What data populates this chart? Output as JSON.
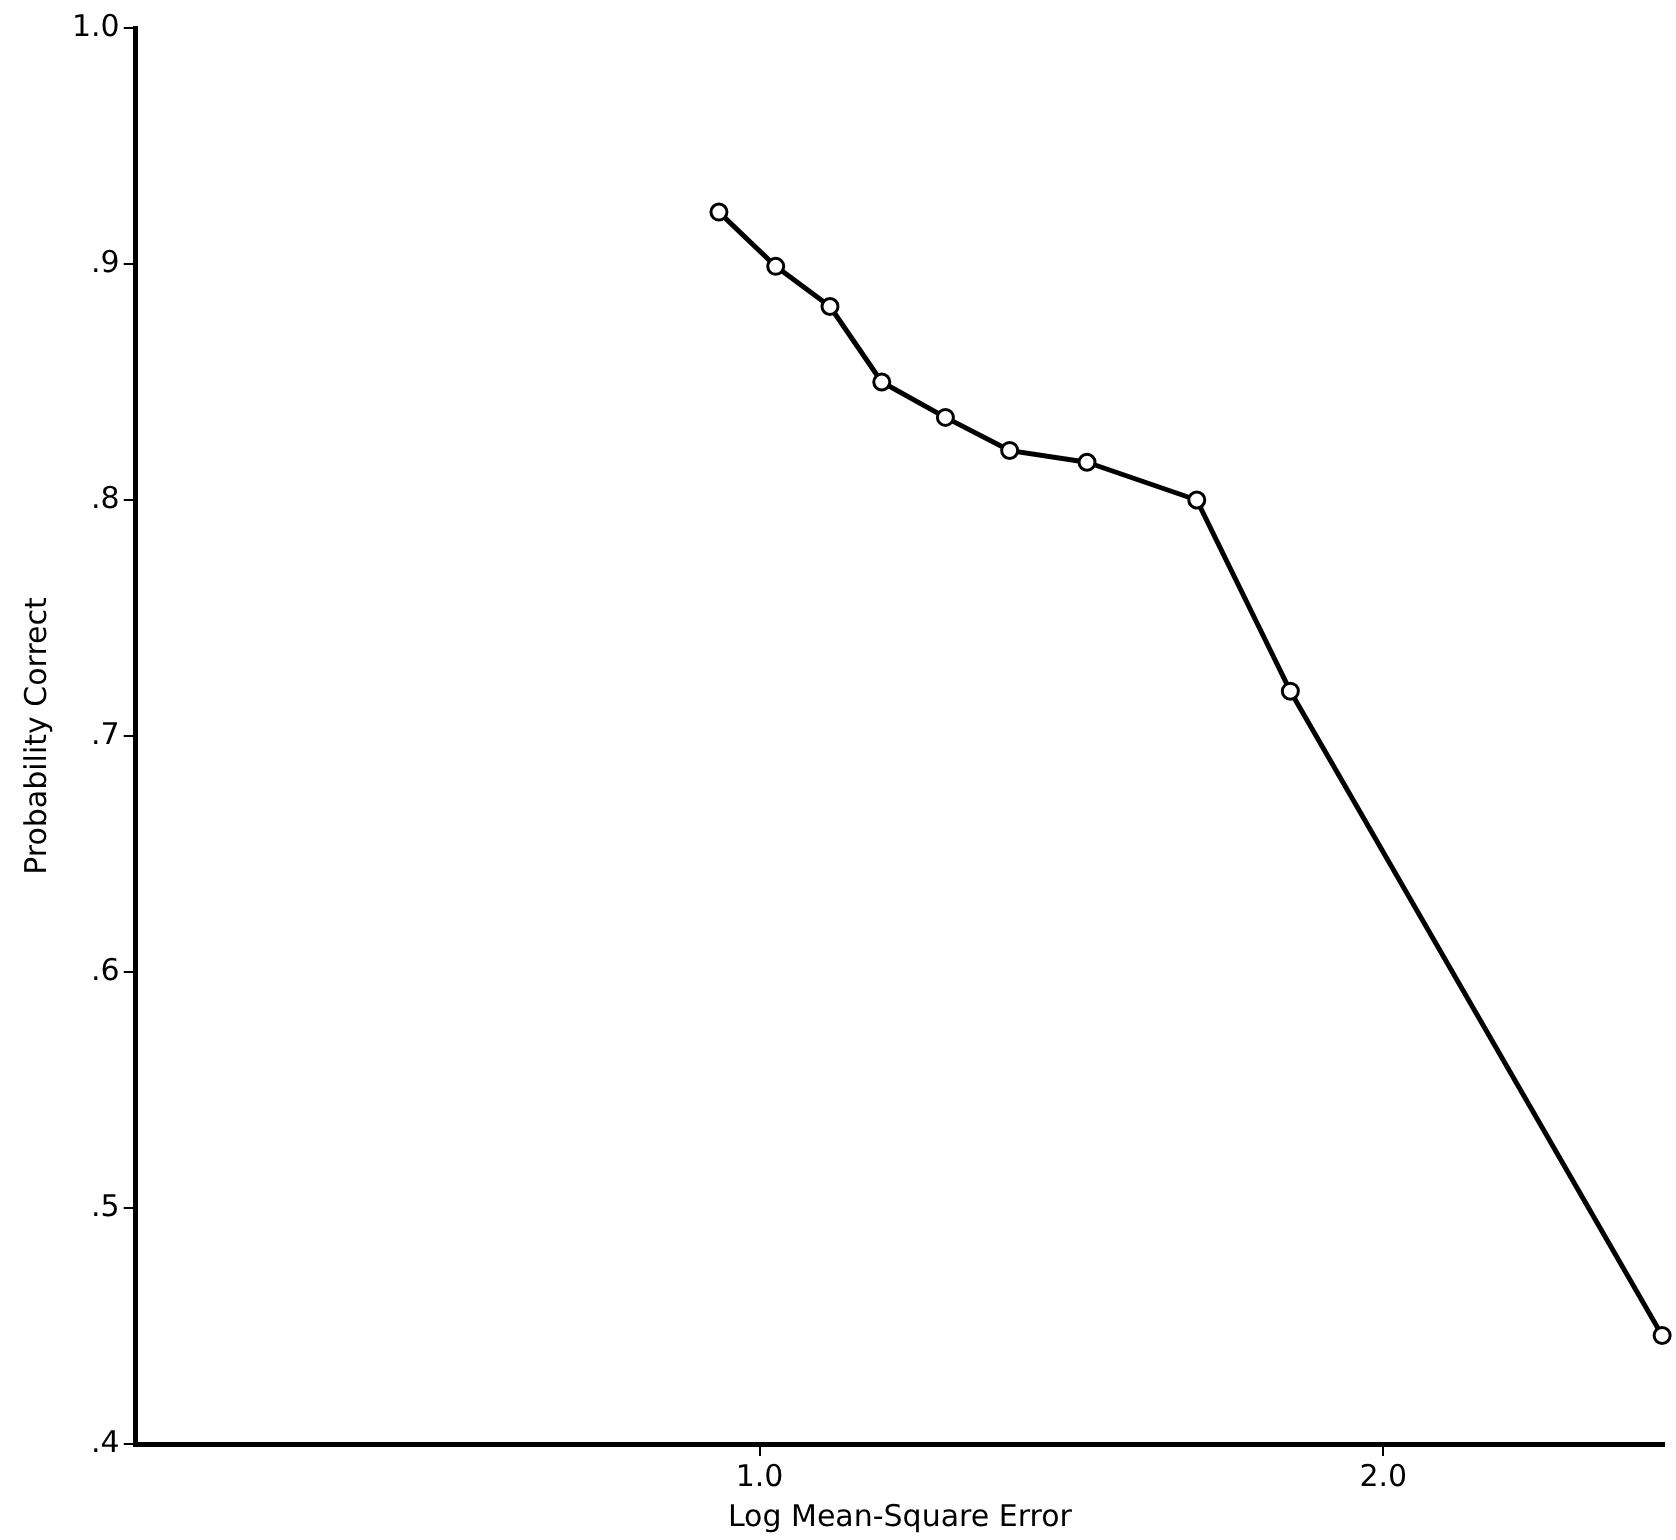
{
  "chart_data": {
    "type": "line",
    "xlabel": "Log Mean-Square Error",
    "ylabel": "Probability Correct",
    "x": [
      0.935,
      1.026,
      1.113,
      1.196,
      1.298,
      1.401,
      1.525,
      1.701,
      1.851,
      2.447
    ],
    "series": [
      {
        "color": "#000000",
        "values": [
          0.922,
          0.899,
          0.882,
          0.85,
          0.835,
          0.821,
          0.816,
          0.8,
          0.719,
          0.446
        ]
      }
    ],
    "xlim": [
      0,
      2.45
    ],
    "ylim": [
      0.4,
      1.0
    ],
    "xticks": [
      {
        "value": 1,
        "label": "1.0"
      },
      {
        "value": 2,
        "label": "2.0"
      }
    ],
    "yticks": [
      {
        "value": 0.4,
        "label": ".4"
      },
      {
        "value": 0.5,
        "label": ".5"
      },
      {
        "value": 0.6,
        "label": ".6"
      },
      {
        "value": 0.7,
        "label": ".7"
      },
      {
        "value": 0.8,
        "label": ".8"
      },
      {
        "value": 0.9,
        "label": ".9"
      },
      {
        "value": 1.0,
        "label": "1.0"
      }
    ],
    "grid": false,
    "legend": false,
    "marker": "circle",
    "line_style": "solid"
  }
}
